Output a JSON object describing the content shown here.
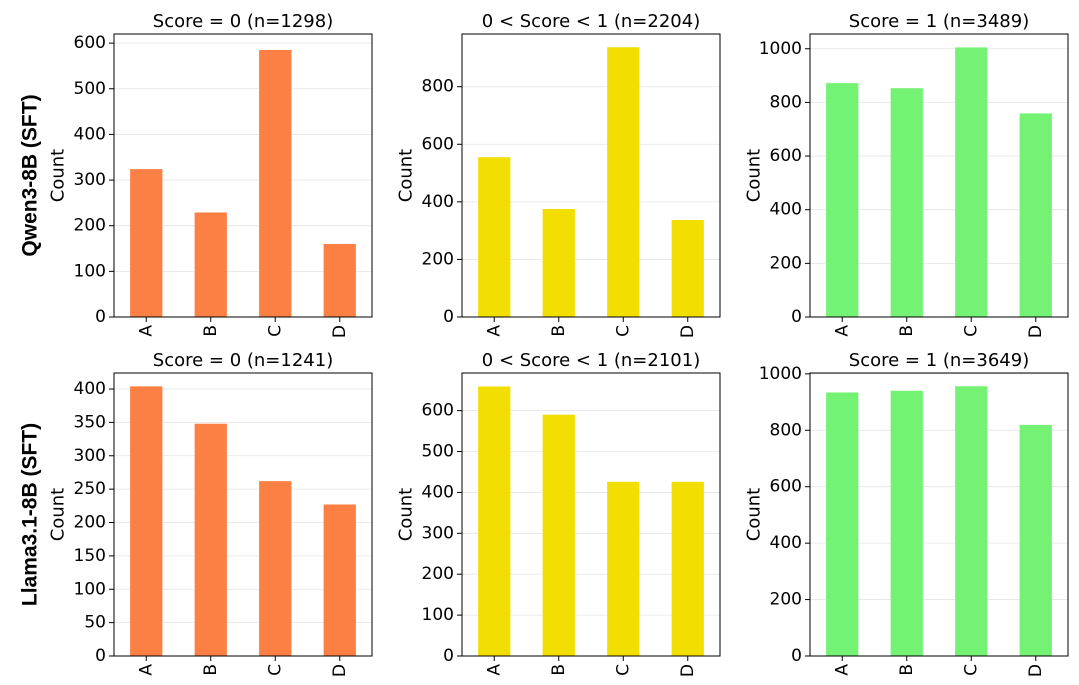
{
  "row_labels": [
    "Qwen3-8B (SFT)",
    "Llama3.1-8B (SFT)"
  ],
  "colors": {
    "score_zero": "#fc7f44",
    "score_mid": "#f2de00",
    "score_one": "#74f274"
  },
  "chart_data": [
    {
      "type": "bar",
      "row": 0,
      "col": 0,
      "title": "Score = 0 (n=1298)",
      "ylabel": "Count",
      "categories": [
        "A",
        "B",
        "C",
        "D"
      ],
      "values": [
        324,
        229,
        585,
        160
      ],
      "ylim": [
        0,
        620
      ],
      "yticks": [
        0,
        100,
        200,
        300,
        400,
        500,
        600
      ],
      "color": "#fc7f44",
      "grid": "y"
    },
    {
      "type": "bar",
      "row": 0,
      "col": 1,
      "title": "0 < Score < 1 (n=2204)",
      "ylabel": "Count",
      "categories": [
        "A",
        "B",
        "C",
        "D"
      ],
      "values": [
        555,
        375,
        937,
        337
      ],
      "ylim": [
        0,
        983
      ],
      "yticks": [
        0,
        200,
        400,
        600,
        800
      ],
      "color": "#f2de00",
      "grid": "y"
    },
    {
      "type": "bar",
      "row": 0,
      "col": 2,
      "title": "Score = 1 (n=3489)",
      "ylabel": "Count",
      "categories": [
        "A",
        "B",
        "C",
        "D"
      ],
      "values": [
        872,
        853,
        1005,
        759
      ],
      "ylim": [
        0,
        1055
      ],
      "yticks": [
        0,
        200,
        400,
        600,
        800,
        1000
      ],
      "color": "#74f274",
      "grid": "y"
    },
    {
      "type": "bar",
      "row": 1,
      "col": 0,
      "title": "Score = 0 (n=1241)",
      "ylabel": "Count",
      "categories": [
        "A",
        "B",
        "C",
        "D"
      ],
      "values": [
        404,
        348,
        262,
        227
      ],
      "ylim": [
        0,
        424
      ],
      "yticks": [
        0,
        50,
        100,
        150,
        200,
        250,
        300,
        350,
        400
      ],
      "color": "#fc7f44",
      "grid": "y"
    },
    {
      "type": "bar",
      "row": 1,
      "col": 1,
      "title": "0 < Score < 1 (n=2101)",
      "ylabel": "Count",
      "categories": [
        "A",
        "B",
        "C",
        "D"
      ],
      "values": [
        659,
        590,
        426,
        426
      ],
      "ylim": [
        0,
        692
      ],
      "yticks": [
        0,
        100,
        200,
        300,
        400,
        500,
        600
      ],
      "color": "#f2de00",
      "grid": "y"
    },
    {
      "type": "bar",
      "row": 1,
      "col": 2,
      "title": "Score = 1 (n=3649)",
      "ylabel": "Count",
      "categories": [
        "A",
        "B",
        "C",
        "D"
      ],
      "values": [
        934,
        940,
        956,
        819
      ],
      "ylim": [
        0,
        1003
      ],
      "yticks": [
        0,
        200,
        400,
        600,
        800,
        1000
      ],
      "color": "#74f274",
      "grid": "y"
    }
  ]
}
